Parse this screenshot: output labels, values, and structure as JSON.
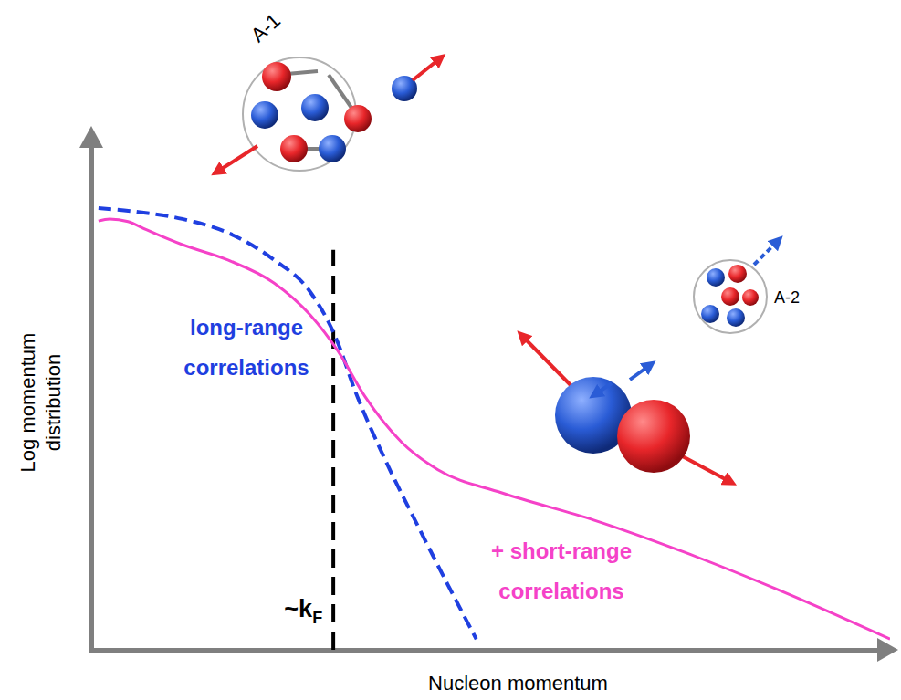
{
  "chart_data": {
    "type": "line",
    "x_label": "Nucleon momentum",
    "y_label": "Log momentum distribution",
    "xlim": [
      0,
      100
    ],
    "ylim": [
      0,
      100
    ],
    "xticks": [],
    "yticks": [],
    "tick_labels": false,
    "grid": false,
    "series": [
      {
        "name": "long-range correlations",
        "color": "#1f3fe0",
        "line_style": "dashed",
        "x": [
          0.9,
          5.7,
          11.4,
          17.1,
          22.9,
          27.4,
          30.6,
          33.1,
          36.6,
          41.1,
          44.6,
          48.2
        ],
        "values": [
          86.1,
          85.4,
          84.0,
          81.3,
          76.0,
          69.8,
          60.9,
          50.2,
          37.7,
          23.5,
          12.8,
          2.1
        ]
      },
      {
        "name": "+ short-range correlations",
        "color": "#f542c8",
        "line_style": "solid",
        "x": [
          0.9,
          2.3,
          4.6,
          6.9,
          11.4,
          17.1,
          22.9,
          27.4,
          30.9,
          34.3,
          38.9,
          43.4,
          51.4,
          62.9,
          74.3,
          85.7,
          100
        ],
        "values": [
          83.6,
          84.0,
          83.5,
          81.9,
          79.0,
          76.0,
          71.5,
          65.3,
          58.2,
          49.3,
          40.4,
          35.1,
          30.6,
          25.3,
          19.0,
          11.9,
          2.1
        ]
      }
    ],
    "annotations": [
      {
        "text": "~k",
        "subscript": "F",
        "x": 30.3,
        "y": 78
      }
    ],
    "cluster_labels": [
      "A-1",
      "A-2"
    ]
  }
}
